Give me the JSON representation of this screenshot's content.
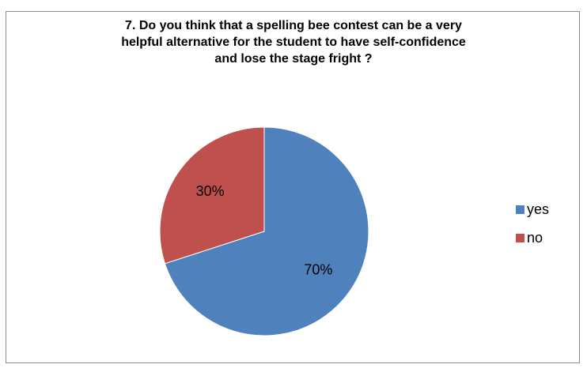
{
  "chart_data": {
    "type": "pie",
    "title_lines": [
      "7. Do you think that a spelling bee contest can be a very",
      "helpful alternative for the student to have self-confidence",
      "and lose the stage fright ?"
    ],
    "slices": [
      {
        "label": "yes",
        "value": 70,
        "display": "70%",
        "color": "#4f81bd"
      },
      {
        "label": "no",
        "value": 30,
        "display": "30%",
        "color": "#c0504d"
      }
    ],
    "legend_position": "right",
    "start_angle_deg": 0,
    "direction": "clockwise"
  }
}
